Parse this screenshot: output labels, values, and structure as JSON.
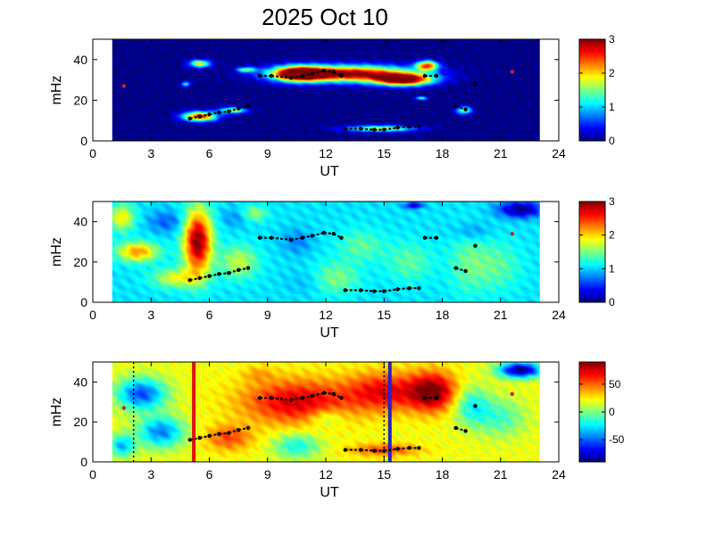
{
  "title": "2025 Oct 10",
  "chart_data": [
    {
      "type": "heatmap",
      "xlabel": "UT",
      "ylabel": "mHz",
      "xlim": [
        0,
        24
      ],
      "ylim": [
        0,
        50
      ],
      "xticks": [
        "0",
        "3",
        "6",
        "9",
        "12",
        "15",
        "18",
        "21",
        "24"
      ],
      "yticks": [
        "0",
        "20",
        "40"
      ],
      "colorbar": {
        "range": [
          0,
          3
        ],
        "ticks": [
          "0",
          "1",
          "2",
          "3"
        ]
      },
      "data_extent_x": [
        1,
        23
      ],
      "background_value": 0,
      "blobs": [
        {
          "x": 13.2,
          "y": 33,
          "rx": 4.2,
          "ry": 5,
          "v": 3
        },
        {
          "x": 16.0,
          "y": 30,
          "rx": 1.8,
          "ry": 3.6,
          "v": 3
        },
        {
          "x": 10.6,
          "y": 33,
          "rx": 1.6,
          "ry": 4.5,
          "v": 3
        },
        {
          "x": 17.2,
          "y": 37,
          "rx": 0.7,
          "ry": 3,
          "v": 2.4
        },
        {
          "x": 5.5,
          "y": 12,
          "rx": 1.1,
          "ry": 3,
          "v": 2.6
        },
        {
          "x": 7.2,
          "y": 15,
          "rx": 0.9,
          "ry": 2,
          "v": 1.6
        },
        {
          "x": 5.5,
          "y": 38,
          "rx": 0.7,
          "ry": 2.4,
          "v": 1.8
        },
        {
          "x": 14.8,
          "y": 6,
          "rx": 2.2,
          "ry": 2,
          "v": 1.7
        },
        {
          "x": 19.1,
          "y": 15,
          "rx": 0.5,
          "ry": 2.5,
          "v": 1.5
        },
        {
          "x": 7.9,
          "y": 35,
          "rx": 0.6,
          "ry": 1.6,
          "v": 1.4
        },
        {
          "x": 4.8,
          "y": 28,
          "rx": 0.3,
          "ry": 1.6,
          "v": 1.2
        },
        {
          "x": 16.9,
          "y": 21,
          "rx": 0.4,
          "ry": 1.2,
          "v": 1.2
        }
      ],
      "markers": [
        {
          "segments": [
            [
              5,
              11
            ],
            [
              5.5,
              12
            ],
            [
              6,
              13
            ],
            [
              6.5,
              14
            ],
            [
              7,
              14.5
            ],
            [
              7.5,
              16
            ],
            [
              8,
              17
            ]
          ],
          "color": "black"
        },
        {
          "segments": [
            [
              8.6,
              32
            ],
            [
              9.2,
              32
            ],
            [
              10.2,
              31
            ],
            [
              10.8,
              32
            ],
            [
              11.3,
              33
            ],
            [
              11.9,
              34.5
            ],
            [
              12.4,
              34
            ],
            [
              12.8,
              32
            ]
          ],
          "color": "black"
        },
        {
          "segments": [
            [
              13,
              6
            ],
            [
              13.8,
              6
            ],
            [
              14.5,
              5.5
            ],
            [
              15,
              5.5
            ],
            [
              15.7,
              6.5
            ],
            [
              16.3,
              7
            ],
            [
              16.8,
              7
            ]
          ],
          "color": "black"
        },
        {
          "segments": [
            [
              17.1,
              32
            ],
            [
              17.7,
              32
            ]
          ],
          "color": "black"
        },
        {
          "segments": [
            [
              18.7,
              17
            ],
            [
              19.2,
              15.5
            ]
          ],
          "color": "black"
        },
        {
          "segments": [
            [
              19.7,
              28
            ]
          ],
          "color": "black"
        },
        {
          "segments": [
            [
              1.6,
              27
            ]
          ],
          "color": "#cc2222"
        },
        {
          "segments": [
            [
              21.6,
              34
            ]
          ],
          "color": "#cc2222"
        }
      ]
    },
    {
      "type": "heatmap",
      "xlabel": "UT",
      "ylabel": "mHz",
      "xlim": [
        0,
        24
      ],
      "ylim": [
        0,
        50
      ],
      "xticks": [
        "0",
        "3",
        "6",
        "9",
        "12",
        "15",
        "18",
        "21",
        "24"
      ],
      "yticks": [
        "0",
        "20",
        "40"
      ],
      "colorbar": {
        "range": [
          0,
          3
        ],
        "ticks": [
          "0",
          "1",
          "2",
          "3"
        ]
      },
      "data_extent_x": [
        1,
        23
      ],
      "background_value": 1.05,
      "blobs": [
        {
          "x": 5.4,
          "y": 30,
          "rx": 0.9,
          "ry": 20,
          "v": 3
        },
        {
          "x": 2.3,
          "y": 25,
          "rx": 1.3,
          "ry": 6,
          "v": 2.2
        },
        {
          "x": 1.5,
          "y": 42,
          "rx": 0.8,
          "ry": 8,
          "v": 1.9
        },
        {
          "x": 4.3,
          "y": 12,
          "rx": 1.5,
          "ry": 6,
          "v": 1.8
        },
        {
          "x": 7.5,
          "y": 20,
          "rx": 1.2,
          "ry": 10,
          "v": 1.7
        },
        {
          "x": 8.3,
          "y": 44,
          "rx": 0.8,
          "ry": 5,
          "v": 1.6
        },
        {
          "x": 12.5,
          "y": 12,
          "rx": 1.5,
          "ry": 10,
          "v": 1.5
        },
        {
          "x": 13.8,
          "y": 28,
          "rx": 1.5,
          "ry": 10,
          "v": 1.4
        },
        {
          "x": 16.3,
          "y": 20,
          "rx": 1.5,
          "ry": 12,
          "v": 1.4
        },
        {
          "x": 19.3,
          "y": 20,
          "rx": 1.2,
          "ry": 20,
          "v": 1.4
        },
        {
          "x": 20.8,
          "y": 18,
          "rx": 1.5,
          "ry": 15,
          "v": 1.4
        },
        {
          "x": 10.5,
          "y": 30,
          "rx": 1.0,
          "ry": 8,
          "v": 0.75
        },
        {
          "x": 11.0,
          "y": 10,
          "rx": 1.2,
          "ry": 8,
          "v": 0.9
        },
        {
          "x": 3.8,
          "y": 40,
          "rx": 1.2,
          "ry": 7,
          "v": 0.65
        },
        {
          "x": 7.3,
          "y": 42,
          "rx": 1.0,
          "ry": 6,
          "v": 0.8
        },
        {
          "x": 19.5,
          "y": 35,
          "rx": 1.2,
          "ry": 6,
          "v": 0.75
        },
        {
          "x": 22.0,
          "y": 46,
          "rx": 1.4,
          "ry": 5,
          "v": 0
        },
        {
          "x": 16.5,
          "y": 48,
          "rx": 0.6,
          "ry": 2,
          "v": 0.2
        }
      ],
      "markers": [
        {
          "segments": [
            [
              5,
              11
            ],
            [
              5.5,
              12
            ],
            [
              6,
              13
            ],
            [
              6.5,
              14
            ],
            [
              7,
              14.5
            ],
            [
              7.5,
              16
            ],
            [
              8,
              17
            ]
          ],
          "color": "black"
        },
        {
          "segments": [
            [
              8.6,
              32
            ],
            [
              9.2,
              32
            ],
            [
              10.2,
              31
            ],
            [
              10.8,
              32
            ],
            [
              11.3,
              33
            ],
            [
              11.9,
              34.5
            ],
            [
              12.4,
              34
            ],
            [
              12.8,
              32
            ]
          ],
          "color": "black"
        },
        {
          "segments": [
            [
              13,
              6
            ],
            [
              13.8,
              6
            ],
            [
              14.5,
              5.5
            ],
            [
              15,
              5.5
            ],
            [
              15.7,
              6.5
            ],
            [
              16.3,
              7
            ],
            [
              16.8,
              7
            ]
          ],
          "color": "black"
        },
        {
          "segments": [
            [
              17.1,
              32
            ],
            [
              17.7,
              32
            ]
          ],
          "color": "black"
        },
        {
          "segments": [
            [
              18.7,
              17
            ],
            [
              19.2,
              15.5
            ]
          ],
          "color": "black"
        },
        {
          "segments": [
            [
              19.7,
              28
            ]
          ],
          "color": "black"
        },
        {
          "segments": [
            [
              21.6,
              34
            ]
          ],
          "color": "#cc2222"
        }
      ]
    },
    {
      "type": "heatmap",
      "xlabel": "UT",
      "ylabel": "mHz",
      "xlim": [
        0,
        24
      ],
      "ylim": [
        0,
        50
      ],
      "xticks": [
        "0",
        "3",
        "6",
        "9",
        "12",
        "15",
        "18",
        "21",
        "24"
      ],
      "yticks": [
        "0",
        "20",
        "40"
      ],
      "colorbar": {
        "range": [
          -90,
          90
        ],
        "ticks": [
          "-50",
          "0",
          "50"
        ]
      },
      "data_extent_x": [
        1,
        23
      ],
      "background_value": 20,
      "blobs": [
        {
          "x": 10.5,
          "y": 30,
          "rx": 3.5,
          "ry": 14,
          "v": 75
        },
        {
          "x": 15.0,
          "y": 35,
          "rx": 2.5,
          "ry": 12,
          "v": 70
        },
        {
          "x": 17.5,
          "y": 35,
          "rx": 1.5,
          "ry": 12,
          "v": 90
        },
        {
          "x": 15.0,
          "y": 6,
          "rx": 2.2,
          "ry": 4,
          "v": 55
        },
        {
          "x": 7.0,
          "y": 12,
          "rx": 1.5,
          "ry": 8,
          "v": 55
        },
        {
          "x": 2.5,
          "y": 34,
          "rx": 1.6,
          "ry": 10,
          "v": -55
        },
        {
          "x": 3.5,
          "y": 15,
          "rx": 1.5,
          "ry": 10,
          "v": -45
        },
        {
          "x": 1.5,
          "y": 8,
          "rx": 0.8,
          "ry": 7,
          "v": -35
        },
        {
          "x": 10.5,
          "y": 8,
          "rx": 1.5,
          "ry": 8,
          "v": -20
        },
        {
          "x": 12.0,
          "y": 22,
          "rx": 1.2,
          "ry": 6,
          "v": -5
        },
        {
          "x": 19.5,
          "y": 28,
          "rx": 1.2,
          "ry": 12,
          "v": -20
        },
        {
          "x": 21.0,
          "y": 22,
          "rx": 1.6,
          "ry": 12,
          "v": -10
        },
        {
          "x": 22.0,
          "y": 46,
          "rx": 1.4,
          "ry": 5,
          "v": -90
        },
        {
          "x": 8.5,
          "y": 44,
          "rx": 1.0,
          "ry": 5,
          "v": 35
        }
      ],
      "markers": [
        {
          "segments": [
            [
              5,
              11
            ],
            [
              5.5,
              12
            ],
            [
              6,
              13
            ],
            [
              6.5,
              14
            ],
            [
              7,
              14.5
            ],
            [
              7.5,
              16
            ],
            [
              8,
              17
            ]
          ],
          "color": "black"
        },
        {
          "segments": [
            [
              8.6,
              32
            ],
            [
              9.2,
              32
            ],
            [
              10.2,
              31
            ],
            [
              10.8,
              32
            ],
            [
              11.3,
              33
            ],
            [
              11.9,
              34.5
            ],
            [
              12.4,
              34
            ],
            [
              12.8,
              32
            ]
          ],
          "color": "black"
        },
        {
          "segments": [
            [
              13,
              6
            ],
            [
              13.8,
              6
            ],
            [
              14.5,
              5.5
            ],
            [
              15,
              5.5
            ],
            [
              15.7,
              6.5
            ],
            [
              16.3,
              7
            ],
            [
              16.8,
              7
            ]
          ],
          "color": "black"
        },
        {
          "segments": [
            [
              17.1,
              32
            ],
            [
              17.7,
              32
            ]
          ],
          "color": "black"
        },
        {
          "segments": [
            [
              18.7,
              17
            ],
            [
              19.2,
              15.5
            ]
          ],
          "color": "black"
        },
        {
          "segments": [
            [
              19.7,
              28
            ]
          ],
          "color": "black"
        },
        {
          "segments": [
            [
              1.6,
              27
            ]
          ],
          "color": "#cc2222"
        },
        {
          "segments": [
            [
              21.6,
              34
            ]
          ],
          "color": "#cc2222"
        }
      ],
      "vlines": [
        {
          "x": 2.1,
          "color": "#000000",
          "style": "dotted"
        },
        {
          "x": 5.2,
          "color": "#dd1111",
          "style": "solid"
        },
        {
          "x": 15.0,
          "color": "#000000",
          "style": "dotted"
        },
        {
          "x": 15.3,
          "color": "#2222cc",
          "style": "solid"
        }
      ]
    }
  ]
}
